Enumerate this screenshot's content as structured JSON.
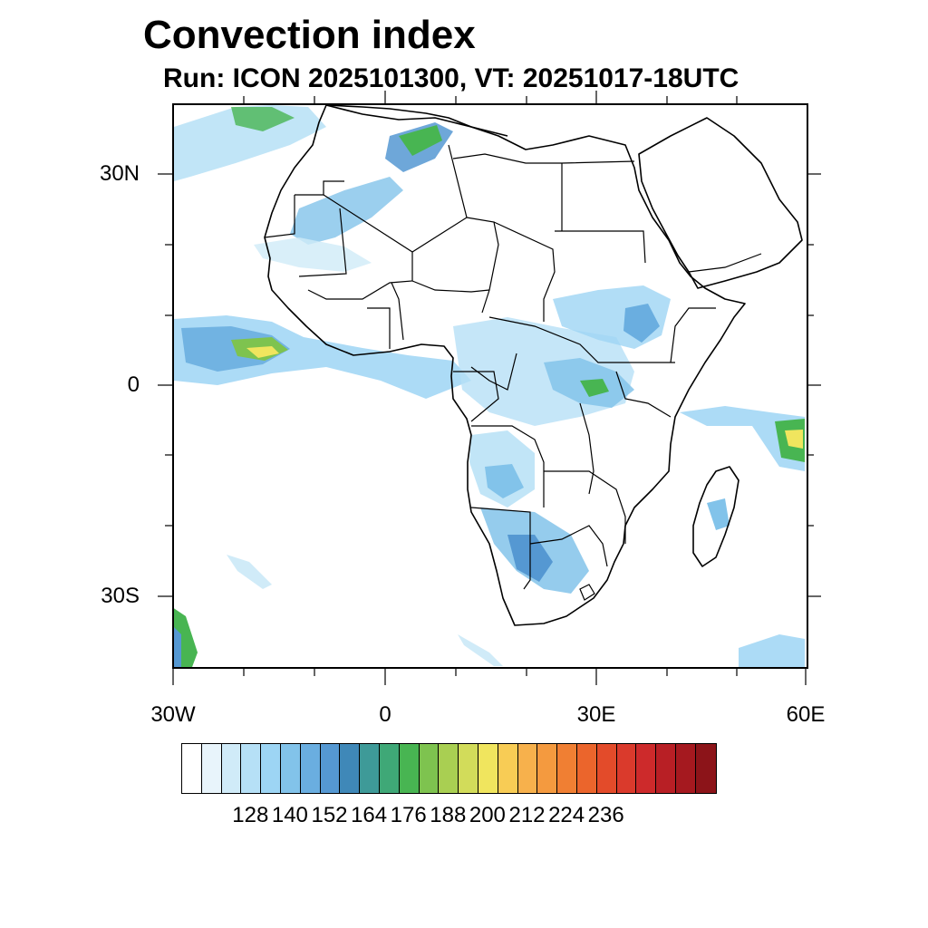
{
  "title": "Convection index",
  "subtitle": "Run: ICON 2025101300,  VT: 20251017-18UTC",
  "axes": {
    "y_labels": [
      "30N",
      "0",
      "30S"
    ],
    "x_labels": [
      "30W",
      "0",
      "30E",
      "60E"
    ]
  },
  "colorbar": {
    "colors": [
      "#ffffff",
      "#e8f4fb",
      "#d0ebf8",
      "#b6e0f6",
      "#9dd5f4",
      "#82c3ea",
      "#6aaee0",
      "#5598d2",
      "#3f88b8",
      "#3e9a98",
      "#3fa877",
      "#48b552",
      "#7ec34f",
      "#a9cf52",
      "#d2dc5a",
      "#f0e55e",
      "#f8cc55",
      "#f7b14c",
      "#f49a3f",
      "#f07f33",
      "#eb652c",
      "#e34b2a",
      "#da3a2c",
      "#cd2a2b",
      "#b81f25",
      "#a5191f",
      "#8c1419"
    ],
    "labels": [
      "128",
      "140",
      "152",
      "164",
      "176",
      "188",
      "200",
      "212",
      "224",
      "236"
    ]
  },
  "legend_icon": "color-scale"
}
